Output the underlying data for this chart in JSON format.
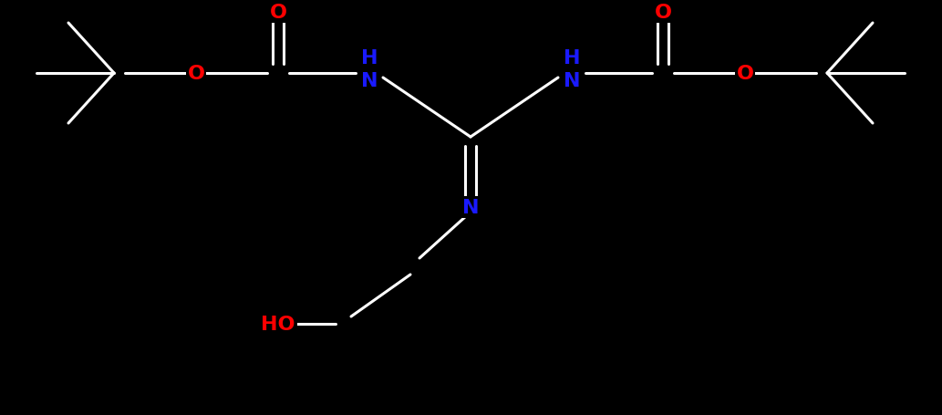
{
  "bg_color": "#000000",
  "bond_color": "#ffffff",
  "O_color": "#ff0000",
  "N_color": "#1a1aff",
  "HO_color": "#ff0000",
  "fig_width": 10.33,
  "fig_height": 4.56,
  "dpi": 100,
  "xlim": [
    0,
    10.33
  ],
  "ylim": [
    0,
    4.56
  ]
}
